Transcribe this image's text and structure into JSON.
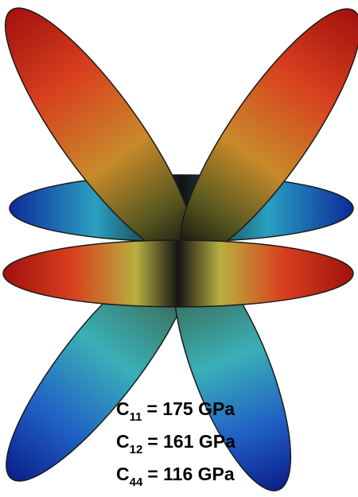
{
  "annotations": [
    {
      "symbol": "C",
      "subscript": "11",
      "text": "= 175 GPa"
    },
    {
      "symbol": "C",
      "subscript": "12",
      "text": "= 161 GPa"
    },
    {
      "symbol": "C",
      "subscript": "44",
      "text": "= 116 GPa"
    }
  ]
}
